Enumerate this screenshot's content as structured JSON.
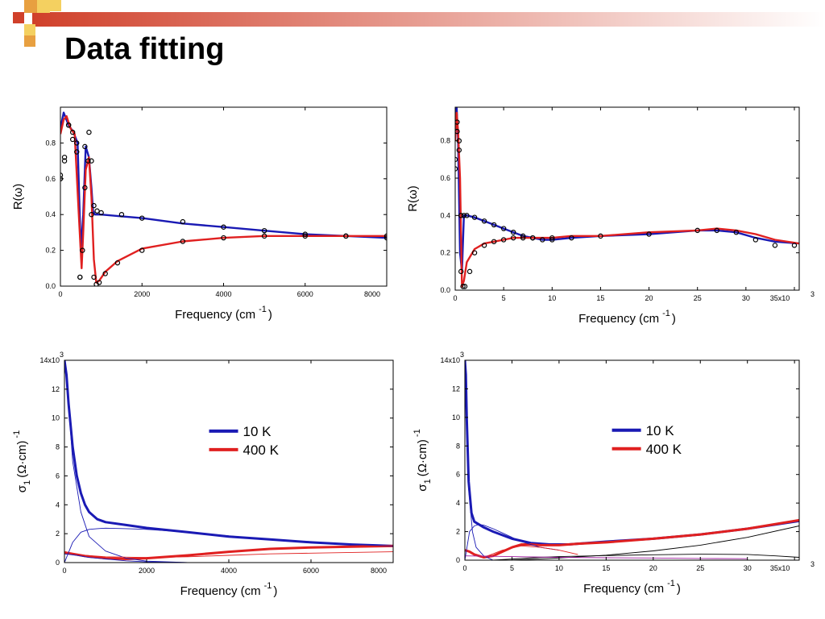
{
  "slide": {
    "title": "Data fitting"
  },
  "chart_data": [
    {
      "type": "scatter",
      "ylabel": "R(ω)",
      "xlabel_main": "Frequency (cm",
      "xlabel_sup": "-1",
      "xlabel_close": ")",
      "xlim": [
        0,
        8000
      ],
      "ylim": [
        0,
        1.0
      ],
      "xticks": [
        0,
        2000,
        4000,
        6000,
        8000
      ],
      "xticklabels": [
        "0",
        "2000",
        "4000",
        "6000",
        "8000"
      ],
      "yticks": [
        0.0,
        0.2,
        0.4,
        0.6,
        0.8
      ],
      "yticklabels": [
        "0.0",
        "0.2",
        "0.4",
        "0.6",
        "0.8"
      ],
      "grid": false,
      "series": [
        {
          "kind": "line",
          "color": "#1a1ab4",
          "x": [
            0,
            80,
            200,
            320,
            420,
            500,
            560,
            620,
            700,
            760,
            800,
            850,
            900,
            1000,
            1500,
            2000,
            3000,
            4000,
            5000,
            6000,
            7000,
            8000
          ],
          "y": [
            0.88,
            0.97,
            0.9,
            0.86,
            0.8,
            0.2,
            0.4,
            0.78,
            0.72,
            0.55,
            0.42,
            0.4,
            0.4,
            0.4,
            0.39,
            0.38,
            0.35,
            0.33,
            0.31,
            0.29,
            0.28,
            0.27
          ]
        },
        {
          "kind": "line",
          "color": "#e02020",
          "x": [
            0,
            80,
            150,
            250,
            350,
            450,
            520,
            560,
            620,
            700,
            760,
            820,
            880,
            950,
            1100,
            1400,
            2000,
            3000,
            4000,
            5000,
            6000,
            7000,
            8000
          ],
          "y": [
            0.85,
            0.93,
            0.95,
            0.88,
            0.85,
            0.4,
            0.1,
            0.3,
            0.65,
            0.72,
            0.5,
            0.15,
            0.02,
            0.03,
            0.08,
            0.14,
            0.21,
            0.25,
            0.27,
            0.28,
            0.28,
            0.28,
            0.28
          ]
        },
        {
          "kind": "points",
          "color": "#000000",
          "x": [
            0,
            100,
            200,
            300,
            400,
            480,
            600,
            700,
            760,
            820,
            900,
            1000,
            1500,
            2000,
            3000,
            4000,
            5000,
            6000,
            7000,
            8000
          ],
          "y": [
            0.62,
            0.72,
            0.9,
            0.86,
            0.8,
            0.05,
            0.78,
            0.86,
            0.7,
            0.45,
            0.42,
            0.41,
            0.4,
            0.38,
            0.36,
            0.33,
            0.31,
            0.29,
            0.28,
            0.27
          ]
        },
        {
          "kind": "points",
          "color": "#000000",
          "x": [
            0,
            100,
            200,
            300,
            400,
            480,
            540,
            600,
            680,
            760,
            820,
            880,
            950,
            1100,
            1400,
            2000,
            3000,
            4000,
            5000,
            6000,
            7000,
            8000
          ],
          "y": [
            0.6,
            0.7,
            0.9,
            0.82,
            0.75,
            0.05,
            0.2,
            0.55,
            0.7,
            0.4,
            0.05,
            0.01,
            0.02,
            0.07,
            0.13,
            0.2,
            0.25,
            0.27,
            0.28,
            0.28,
            0.28,
            0.28
          ]
        }
      ]
    },
    {
      "type": "scatter",
      "ylabel": "R(ω)",
      "xlabel_main": "Frequency (cm",
      "xlabel_sup": "-1",
      "xlabel_close": ")",
      "xlim": [
        0,
        35500
      ],
      "ylim": [
        0,
        0.98
      ],
      "xticks": [
        0,
        5000,
        10000,
        15000,
        20000,
        25000,
        30000,
        35000
      ],
      "xticklabels": [
        "0",
        "5",
        "10",
        "15",
        "20",
        "25",
        "30",
        "35x10"
      ],
      "x_multiplier": "3",
      "yticks": [
        0.0,
        0.2,
        0.4,
        0.6,
        0.8
      ],
      "yticklabels": [
        "0.0",
        "0.2",
        "0.4",
        "0.6",
        "0.8"
      ],
      "grid": false,
      "series": [
        {
          "kind": "line",
          "color": "#1a1ab4",
          "x": [
            0,
            150,
            300,
            500,
            700,
            900,
            1200,
            2000,
            3000,
            4000,
            5000,
            6000,
            7000,
            8000,
            9000,
            10000,
            12000,
            15000,
            20000,
            25000,
            27000,
            29000,
            31000,
            33000,
            35500
          ],
          "y": [
            0.85,
            0.98,
            0.8,
            0.2,
            0.1,
            0.4,
            0.4,
            0.39,
            0.37,
            0.35,
            0.33,
            0.31,
            0.29,
            0.28,
            0.27,
            0.27,
            0.28,
            0.29,
            0.3,
            0.32,
            0.32,
            0.31,
            0.28,
            0.26,
            0.25
          ]
        },
        {
          "kind": "line",
          "color": "#e02020",
          "x": [
            0,
            150,
            300,
            500,
            700,
            900,
            1200,
            2000,
            3000,
            4000,
            5000,
            6000,
            7000,
            8000,
            10000,
            12000,
            15000,
            20000,
            25000,
            27000,
            29000,
            31000,
            33000,
            35500
          ],
          "y": [
            0.8,
            0.95,
            0.85,
            0.6,
            0.02,
            0.05,
            0.15,
            0.22,
            0.25,
            0.26,
            0.27,
            0.28,
            0.28,
            0.28,
            0.28,
            0.29,
            0.29,
            0.31,
            0.32,
            0.33,
            0.32,
            0.3,
            0.27,
            0.25
          ]
        },
        {
          "kind": "points",
          "color": "#000000",
          "x": [
            0,
            200,
            400,
            600,
            900,
            1200,
            2000,
            3000,
            4000,
            5000,
            6000,
            7000,
            8000,
            9000,
            10000,
            12000,
            15000,
            20000,
            25000,
            27000,
            29000,
            31000,
            33000,
            35000
          ],
          "y": [
            0.7,
            0.9,
            0.8,
            0.1,
            0.4,
            0.4,
            0.39,
            0.37,
            0.35,
            0.33,
            0.31,
            0.29,
            0.28,
            0.27,
            0.27,
            0.28,
            0.29,
            0.3,
            0.32,
            0.32,
            0.31,
            0.27,
            0.24,
            0.24
          ]
        },
        {
          "kind": "points",
          "color": "#000000",
          "x": [
            0,
            200,
            400,
            600,
            800,
            1000,
            1500,
            2000,
            3000,
            4000,
            5000,
            6000,
            7000,
            8000,
            10000
          ],
          "y": [
            0.65,
            0.85,
            0.75,
            0.4,
            0.02,
            0.02,
            0.1,
            0.2,
            0.24,
            0.26,
            0.27,
            0.28,
            0.28,
            0.28,
            0.28
          ]
        }
      ]
    },
    {
      "type": "line",
      "ylabel": "σ",
      "ylabel_sub": "1",
      "ylabel_rest": "(Ω·cm)",
      "ylabel_sup": "-1",
      "xlabel_main": "Frequency (cm",
      "xlabel_sup": "-1",
      "xlabel_close": ")",
      "xlim": [
        0,
        8000
      ],
      "ylim": [
        0,
        14000
      ],
      "xticks": [
        0,
        2000,
        4000,
        6000,
        8000
      ],
      "xticklabels": [
        "0",
        "2000",
        "4000",
        "6000",
        "8000"
      ],
      "yticks": [
        0,
        2000,
        4000,
        6000,
        8000,
        10000,
        12000,
        14000
      ],
      "yticklabels": [
        "0",
        "2",
        "4",
        "6",
        "8",
        "10",
        "12",
        "14x10"
      ],
      "y_multiplier": "3",
      "grid": false,
      "legend": {
        "placement": "center",
        "entries": [
          {
            "name": "10 K",
            "color": "#1a1ab4"
          },
          {
            "name": "400 K",
            "color": "#e02020"
          }
        ]
      },
      "series": [
        {
          "kind": "thick",
          "color": "#1a1ab4",
          "x": [
            0,
            50,
            100,
            200,
            300,
            400,
            500,
            600,
            800,
            1000,
            1500,
            2000,
            3000,
            4000,
            5000,
            6000,
            7000,
            8000
          ],
          "y": [
            14000,
            13000,
            11000,
            8000,
            6000,
            4800,
            4000,
            3500,
            3000,
            2800,
            2600,
            2400,
            2100,
            1800,
            1600,
            1400,
            1250,
            1150
          ]
        },
        {
          "kind": "thick",
          "color": "#e02020",
          "x": [
            0,
            200,
            500,
            1000,
            1500,
            2000,
            3000,
            4000,
            5000,
            6000,
            7000,
            8000
          ],
          "y": [
            700,
            600,
            450,
            300,
            250,
            300,
            500,
            750,
            950,
            1050,
            1100,
            1150
          ]
        },
        {
          "kind": "thin",
          "color": "#1a1ab4",
          "x": [
            0,
            100,
            200,
            400,
            600,
            1000,
            1500,
            2000,
            3000
          ],
          "y": [
            14000,
            11000,
            7000,
            3500,
            1800,
            800,
            300,
            100,
            0
          ]
        },
        {
          "kind": "thin",
          "color": "#1a1ab4",
          "x": [
            0,
            200,
            400,
            600,
            800,
            1000,
            1500,
            2000,
            3000,
            4000,
            5000,
            6000,
            7000,
            8000
          ],
          "y": [
            0,
            1400,
            2100,
            2300,
            2350,
            2380,
            2350,
            2300,
            2100,
            1850,
            1600,
            1400,
            1250,
            1150
          ]
        },
        {
          "kind": "thin",
          "color": "#e02020",
          "x": [
            0,
            500,
            1000,
            2000,
            3000,
            4000,
            5000,
            6000,
            7000,
            8000
          ],
          "y": [
            600,
            500,
            400,
            350,
            400,
            500,
            600,
            650,
            700,
            750
          ]
        },
        {
          "kind": "thin",
          "color": "#1a1ab4",
          "x": [
            0,
            300,
            600,
            1000,
            1500,
            2000,
            3000
          ],
          "y": [
            600,
            500,
            350,
            250,
            120,
            50,
            0
          ]
        }
      ]
    },
    {
      "type": "line",
      "ylabel": "σ",
      "ylabel_sub": "1",
      "ylabel_rest": "(Ω·cm)",
      "ylabel_sup": "-1",
      "xlabel_main": "Frequency (cm",
      "xlabel_sup": "-1",
      "xlabel_close": ")",
      "xlim": [
        0,
        35500
      ],
      "ylim": [
        0,
        14000
      ],
      "xticks": [
        0,
        5000,
        10000,
        15000,
        20000,
        25000,
        30000,
        35000
      ],
      "xticklabels": [
        "0",
        "5",
        "10",
        "15",
        "20",
        "25",
        "30",
        "35x10"
      ],
      "x_multiplier": "3",
      "yticks": [
        0,
        2000,
        4000,
        6000,
        8000,
        10000,
        12000,
        14000
      ],
      "yticklabels": [
        "0",
        "2",
        "4",
        "6",
        "8",
        "10",
        "12",
        "14x10"
      ],
      "y_multiplier": "3",
      "grid": false,
      "legend": {
        "placement": "center",
        "entries": [
          {
            "name": "10 K",
            "color": "#1a1ab4"
          },
          {
            "name": "400 K",
            "color": "#e02020"
          }
        ]
      },
      "series": [
        {
          "kind": "thick",
          "color": "#1a1ab4",
          "x": [
            0,
            100,
            200,
            400,
            700,
            1000,
            1500,
            2000,
            3000,
            5000,
            7000,
            9000,
            11000,
            15000,
            20000,
            25000,
            30000,
            35500
          ],
          "y": [
            14000,
            13000,
            10000,
            5500,
            3300,
            2700,
            2500,
            2300,
            2000,
            1500,
            1200,
            1100,
            1100,
            1300,
            1500,
            1800,
            2200,
            2750
          ]
        },
        {
          "kind": "thick",
          "color": "#e02020",
          "x": [
            0,
            500,
            1000,
            2000,
            3000,
            4000,
            5000,
            6000,
            7000,
            8000,
            10000,
            12000,
            15000,
            20000,
            25000,
            30000,
            35500
          ],
          "y": [
            700,
            600,
            400,
            200,
            300,
            600,
            900,
            1100,
            1100,
            1050,
            1050,
            1150,
            1250,
            1500,
            1800,
            2200,
            2800
          ]
        },
        {
          "kind": "thin",
          "color": "#1a1ab4",
          "x": [
            0,
            200,
            400,
            800,
            1200,
            2000,
            3000
          ],
          "y": [
            14000,
            9000,
            5000,
            2000,
            900,
            300,
            0
          ]
        },
        {
          "kind": "thin",
          "color": "#1a1ab4",
          "x": [
            0,
            500,
            1000,
            1500,
            2000,
            3000,
            4000,
            6000,
            8000,
            10000
          ],
          "y": [
            0,
            2000,
            2400,
            2500,
            2450,
            2200,
            1900,
            1300,
            900,
            700
          ]
        },
        {
          "kind": "thin",
          "color": "#000000",
          "x": [
            5000,
            10000,
            15000,
            20000,
            25000,
            30000,
            35500
          ],
          "y": [
            0,
            150,
            350,
            650,
            1050,
            1600,
            2400
          ]
        },
        {
          "kind": "thin",
          "color": "#000000",
          "x": [
            3000,
            8000,
            10000,
            15000,
            20000,
            25000,
            30000,
            33000,
            35500
          ],
          "y": [
            0,
            200,
            250,
            320,
            380,
            420,
            400,
            300,
            200
          ]
        },
        {
          "kind": "thin",
          "color": "#e02020",
          "x": [
            2000,
            4000,
            6000,
            8000,
            10000,
            12000
          ],
          "y": [
            200,
            700,
            1000,
            900,
            700,
            400
          ]
        },
        {
          "kind": "thin",
          "color": "#a020a0",
          "x": [
            0,
            5000,
            10000,
            15000,
            20000,
            25000,
            30000
          ],
          "y": [
            300,
            250,
            200,
            170,
            150,
            120,
            100
          ]
        }
      ]
    }
  ]
}
